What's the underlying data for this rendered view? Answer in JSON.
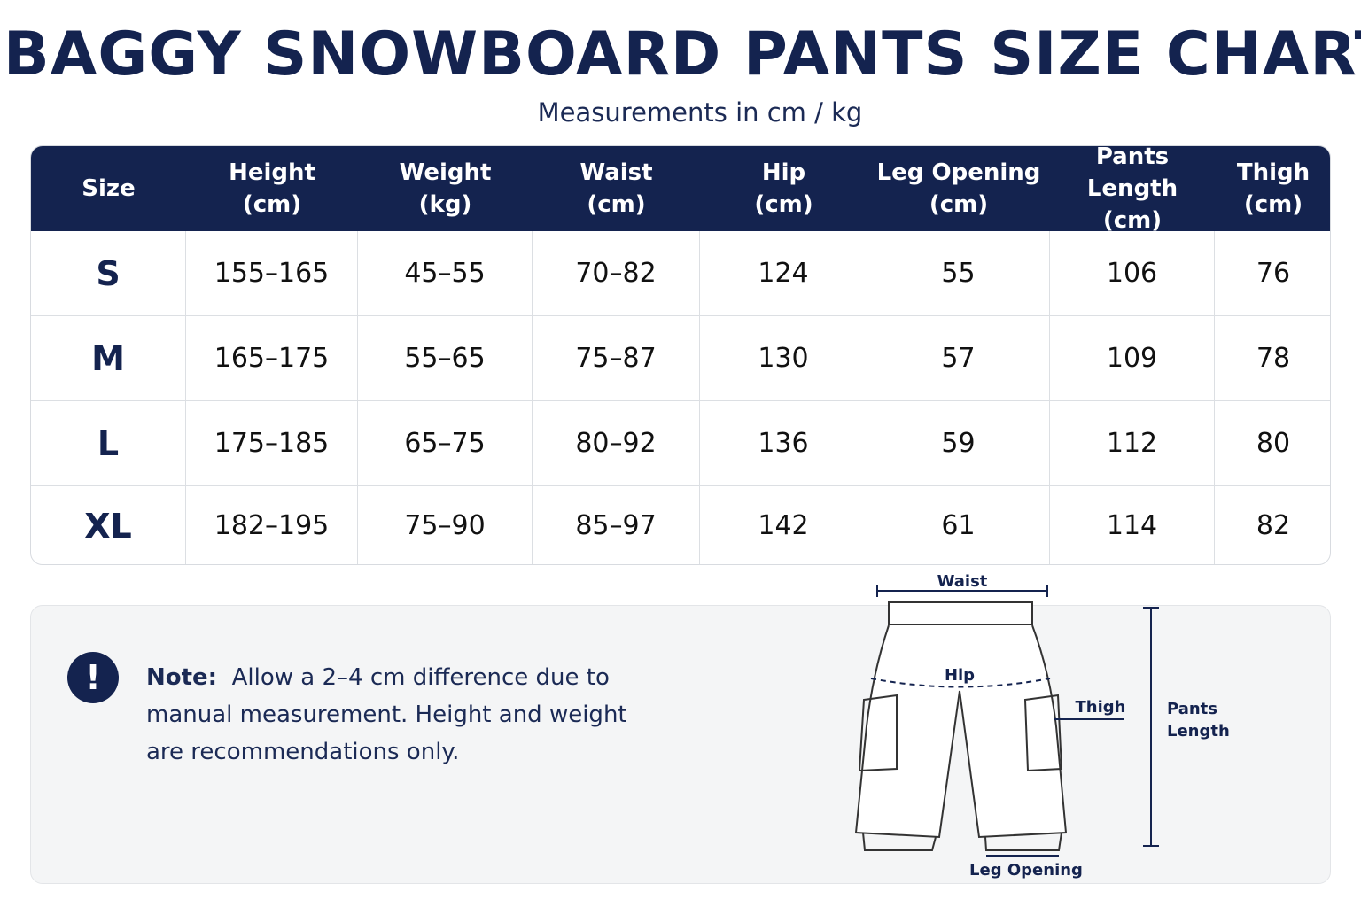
{
  "header": {
    "title": "BAGGY SNOWBOARD PANTS SIZE CHART",
    "subtitle": "Measurements in cm / kg"
  },
  "table": {
    "columns": [
      [
        "Size"
      ],
      [
        "Height",
        "(cm)"
      ],
      [
        "Weight",
        "(kg)"
      ],
      [
        "Waist",
        "(cm)"
      ],
      [
        "Hip",
        "(cm)"
      ],
      [
        "Leg Opening",
        "(cm)"
      ],
      [
        "Pants Length",
        "(cm)"
      ],
      [
        "Thigh",
        "(cm)"
      ]
    ],
    "rows": [
      [
        "S",
        "155–165",
        "45–55",
        "70–82",
        "124",
        "55",
        "106",
        "76"
      ],
      [
        "M",
        "165–175",
        "55–65",
        "75–87",
        "130",
        "57",
        "109",
        "78"
      ],
      [
        "L",
        "175–185",
        "65–75",
        "80–92",
        "136",
        "59",
        "112",
        "80"
      ],
      [
        "XL",
        "182–195",
        "75–90",
        "85–97",
        "142",
        "61",
        "114",
        "82"
      ]
    ]
  },
  "note": {
    "label": "Note:",
    "lines": [
      "Allow a 2–4 cm difference due to",
      "manual measurement. Height and weight",
      "are recommendations only."
    ]
  },
  "diagram": {
    "waist": "Waist",
    "hip": "Hip",
    "thigh": "Thigh",
    "pants_length": [
      "Pants",
      "Length"
    ],
    "leg_opening": "Leg Opening"
  }
}
